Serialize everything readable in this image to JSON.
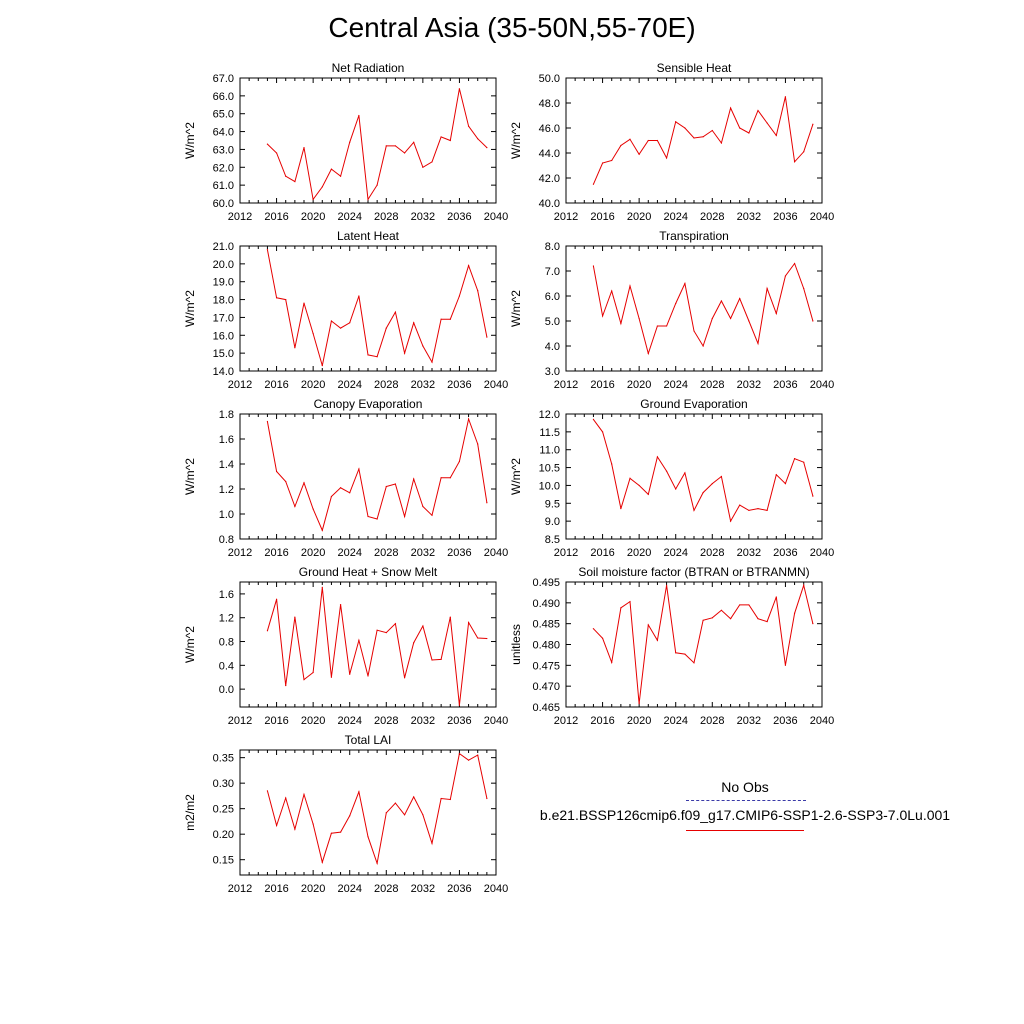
{
  "figure": {
    "title": "Central Asia (35-50N,55-70E)"
  },
  "legend": {
    "observation_label": "No Obs",
    "simulation_label": "b.e21.BSSP126cmip6.f09_g17.CMIP6-SSP1-2.6-SSP3-7.0Lu.001",
    "observation_color": "#3a3aa8",
    "simulation_color": "#e60000"
  },
  "chart_data": [
    {
      "type": "line",
      "title": "Net Radiation",
      "ylabel": "W/m^2",
      "xlim": [
        2012,
        2040
      ],
      "xticks": [
        2012,
        2016,
        2020,
        2024,
        2028,
        2032,
        2036,
        2040
      ],
      "ylim": [
        60.0,
        67.0
      ],
      "yticks": [
        60.0,
        61.0,
        62.0,
        63.0,
        64.0,
        65.0,
        66.0,
        67.0
      ],
      "ytick_labels": [
        "60.0",
        "61.0",
        "62.0",
        "63.0",
        "64.0",
        "65.0",
        "66.0",
        "67.0"
      ],
      "x": [
        2015,
        2016,
        2017,
        2018,
        2019,
        2020,
        2021,
        2022,
        2023,
        2024,
        2025,
        2026,
        2027,
        2028,
        2029,
        2030,
        2031,
        2032,
        2033,
        2034,
        2035,
        2036,
        2037,
        2038,
        2039
      ],
      "series": [
        {
          "values": [
            63.3,
            62.8,
            61.5,
            61.2,
            63.1,
            60.2,
            60.9,
            61.9,
            61.5,
            63.4,
            64.9,
            60.2,
            61.0,
            63.2,
            63.2,
            62.8,
            63.4,
            62.0,
            62.3,
            63.7,
            63.5,
            66.4,
            64.3,
            63.6,
            63.1
          ],
          "color": "#e60000"
        }
      ]
    },
    {
      "type": "line",
      "title": "Sensible Heat",
      "ylabel": "W/m^2",
      "xlim": [
        2012,
        2040
      ],
      "xticks": [
        2012,
        2016,
        2020,
        2024,
        2028,
        2032,
        2036,
        2040
      ],
      "ylim": [
        40.0,
        50.0
      ],
      "yticks": [
        40.0,
        42.0,
        44.0,
        46.0,
        48.0,
        50.0
      ],
      "ytick_labels": [
        "40.0",
        "42.0",
        "44.0",
        "46.0",
        "48.0",
        "50.0"
      ],
      "x": [
        2015,
        2016,
        2017,
        2018,
        2019,
        2020,
        2021,
        2022,
        2023,
        2024,
        2025,
        2026,
        2027,
        2028,
        2029,
        2030,
        2031,
        2032,
        2033,
        2034,
        2035,
        2036,
        2037,
        2038,
        2039
      ],
      "series": [
        {
          "values": [
            41.5,
            43.2,
            43.4,
            44.6,
            45.1,
            43.9,
            45.0,
            45.0,
            43.6,
            46.5,
            46.0,
            45.2,
            45.3,
            45.8,
            44.8,
            47.6,
            46.0,
            45.6,
            47.4,
            46.4,
            45.4,
            48.5,
            43.3,
            44.1,
            46.3
          ],
          "color": "#e60000"
        }
      ]
    },
    {
      "type": "line",
      "title": "Latent Heat",
      "ylabel": "W/m^2",
      "xlim": [
        2012,
        2040
      ],
      "xticks": [
        2012,
        2016,
        2020,
        2024,
        2028,
        2032,
        2036,
        2040
      ],
      "ylim": [
        14.0,
        21.0
      ],
      "yticks": [
        14.0,
        15.0,
        16.0,
        17.0,
        18.0,
        19.0,
        20.0,
        21.0
      ],
      "ytick_labels": [
        "14.0",
        "15.0",
        "16.0",
        "17.0",
        "18.0",
        "19.0",
        "20.0",
        "21.0"
      ],
      "x": [
        2015,
        2016,
        2017,
        2018,
        2019,
        2020,
        2021,
        2022,
        2023,
        2024,
        2025,
        2026,
        2027,
        2028,
        2029,
        2030,
        2031,
        2032,
        2033,
        2034,
        2035,
        2036,
        2037,
        2038,
        2039
      ],
      "series": [
        {
          "values": [
            20.8,
            18.1,
            18.0,
            15.3,
            17.8,
            16.1,
            14.3,
            16.8,
            16.4,
            16.7,
            18.2,
            14.9,
            14.8,
            16.4,
            17.3,
            15.0,
            16.7,
            15.4,
            14.5,
            16.9,
            16.9,
            18.2,
            19.9,
            18.5,
            15.9
          ],
          "color": "#e60000"
        }
      ]
    },
    {
      "type": "line",
      "title": "Transpiration",
      "ylabel": "W/m^2",
      "xlim": [
        2012,
        2040
      ],
      "xticks": [
        2012,
        2016,
        2020,
        2024,
        2028,
        2032,
        2036,
        2040
      ],
      "ylim": [
        3.0,
        8.0
      ],
      "yticks": [
        3.0,
        4.0,
        5.0,
        6.0,
        7.0,
        8.0
      ],
      "ytick_labels": [
        "3.0",
        "4.0",
        "5.0",
        "6.0",
        "7.0",
        "8.0"
      ],
      "x": [
        2015,
        2016,
        2017,
        2018,
        2019,
        2020,
        2021,
        2022,
        2023,
        2024,
        2025,
        2026,
        2027,
        2028,
        2029,
        2030,
        2031,
        2032,
        2033,
        2034,
        2035,
        2036,
        2037,
        2038,
        2039
      ],
      "series": [
        {
          "values": [
            7.2,
            5.2,
            6.2,
            4.9,
            6.4,
            5.1,
            3.7,
            4.8,
            4.8,
            5.7,
            6.5,
            4.6,
            4.0,
            5.1,
            5.8,
            5.1,
            5.9,
            5.0,
            4.1,
            6.3,
            5.3,
            6.8,
            7.3,
            6.3,
            5.0
          ],
          "color": "#e60000"
        }
      ]
    },
    {
      "type": "line",
      "title": "Canopy Evaporation",
      "ylabel": "W/m^2",
      "xlim": [
        2012,
        2040
      ],
      "xticks": [
        2012,
        2016,
        2020,
        2024,
        2028,
        2032,
        2036,
        2040
      ],
      "ylim": [
        0.8,
        1.8
      ],
      "yticks": [
        0.8,
        1.0,
        1.2,
        1.4,
        1.6,
        1.8
      ],
      "ytick_labels": [
        "0.8",
        "1.0",
        "1.2",
        "1.4",
        "1.6",
        "1.8"
      ],
      "x": [
        2015,
        2016,
        2017,
        2018,
        2019,
        2020,
        2021,
        2022,
        2023,
        2024,
        2025,
        2026,
        2027,
        2028,
        2029,
        2030,
        2031,
        2032,
        2033,
        2034,
        2035,
        2036,
        2037,
        2038,
        2039
      ],
      "series": [
        {
          "values": [
            1.74,
            1.34,
            1.26,
            1.06,
            1.25,
            1.04,
            0.87,
            1.14,
            1.21,
            1.17,
            1.36,
            0.98,
            0.96,
            1.22,
            1.24,
            0.98,
            1.28,
            1.06,
            0.99,
            1.29,
            1.29,
            1.42,
            1.76,
            1.56,
            1.09
          ],
          "color": "#e60000"
        }
      ]
    },
    {
      "type": "line",
      "title": "Ground Evaporation",
      "ylabel": "W/m^2",
      "xlim": [
        2012,
        2040
      ],
      "xticks": [
        2012,
        2016,
        2020,
        2024,
        2028,
        2032,
        2036,
        2040
      ],
      "ylim": [
        8.5,
        12.0
      ],
      "yticks": [
        8.5,
        9.0,
        9.5,
        10.0,
        10.5,
        11.0,
        11.5,
        12.0
      ],
      "ytick_labels": [
        "8.5",
        "9.0",
        "9.5",
        "10.0",
        "10.5",
        "11.0",
        "11.5",
        "12.0"
      ],
      "x": [
        2015,
        2016,
        2017,
        2018,
        2019,
        2020,
        2021,
        2022,
        2023,
        2024,
        2025,
        2026,
        2027,
        2028,
        2029,
        2030,
        2031,
        2032,
        2033,
        2034,
        2035,
        2036,
        2037,
        2038,
        2039
      ],
      "series": [
        {
          "values": [
            11.85,
            11.5,
            10.6,
            9.35,
            10.2,
            10.0,
            9.75,
            10.8,
            10.4,
            9.9,
            10.35,
            9.3,
            9.8,
            10.05,
            10.25,
            9.0,
            9.45,
            9.3,
            9.35,
            9.3,
            10.3,
            10.05,
            10.75,
            10.65,
            9.7
          ],
          "color": "#e60000"
        }
      ]
    },
    {
      "type": "line",
      "title": "Ground Heat + Snow Melt",
      "ylabel": "W/m^2",
      "xlim": [
        2012,
        2040
      ],
      "xticks": [
        2012,
        2016,
        2020,
        2024,
        2028,
        2032,
        2036,
        2040
      ],
      "ylim": [
        -0.3,
        1.8
      ],
      "yticks": [
        0.0,
        0.4,
        0.8,
        1.2,
        1.6
      ],
      "ytick_labels": [
        "0.0",
        "0.4",
        "0.8",
        "1.2",
        "1.6"
      ],
      "x": [
        2015,
        2016,
        2017,
        2018,
        2019,
        2020,
        2021,
        2022,
        2023,
        2024,
        2025,
        2026,
        2027,
        2028,
        2029,
        2030,
        2031,
        2032,
        2033,
        2034,
        2035,
        2036,
        2037,
        2038,
        2039
      ],
      "series": [
        {
          "values": [
            0.98,
            1.51,
            0.06,
            1.21,
            0.16,
            0.28,
            1.71,
            0.2,
            1.42,
            0.25,
            0.82,
            0.22,
            0.99,
            0.95,
            1.1,
            0.19,
            0.78,
            1.06,
            0.49,
            0.5,
            1.21,
            -0.27,
            1.12,
            0.86,
            0.85
          ],
          "color": "#e60000"
        }
      ]
    },
    {
      "type": "line",
      "title": "Soil moisture factor (BTRAN or BTRANMN)",
      "ylabel": "unitless",
      "xlim": [
        2012,
        2040
      ],
      "xticks": [
        2012,
        2016,
        2020,
        2024,
        2028,
        2032,
        2036,
        2040
      ],
      "ylim": [
        0.465,
        0.495
      ],
      "yticks": [
        0.465,
        0.47,
        0.475,
        0.48,
        0.485,
        0.49,
        0.495
      ],
      "ytick_labels": [
        "0.465",
        "0.470",
        "0.475",
        "0.480",
        "0.485",
        "0.490",
        "0.495"
      ],
      "x": [
        2015,
        2016,
        2017,
        2018,
        2019,
        2020,
        2021,
        2022,
        2023,
        2024,
        2025,
        2026,
        2027,
        2028,
        2029,
        2030,
        2031,
        2032,
        2033,
        2034,
        2035,
        2036,
        2037,
        2038,
        2039
      ],
      "series": [
        {
          "values": [
            0.4838,
            0.4815,
            0.4757,
            0.4888,
            0.4903,
            0.4658,
            0.4847,
            0.481,
            0.4942,
            0.478,
            0.4777,
            0.4756,
            0.4858,
            0.4864,
            0.4882,
            0.4862,
            0.4895,
            0.4895,
            0.4862,
            0.4855,
            0.4914,
            0.475,
            0.4875,
            0.4942,
            0.485
          ],
          "color": "#e60000"
        }
      ]
    },
    {
      "type": "line",
      "title": "Total LAI",
      "ylabel": "m2/m2",
      "xlim": [
        2012,
        2040
      ],
      "xticks": [
        2012,
        2016,
        2020,
        2024,
        2028,
        2032,
        2036,
        2040
      ],
      "ylim": [
        0.12,
        0.365
      ],
      "yticks": [
        0.15,
        0.2,
        0.25,
        0.3,
        0.35
      ],
      "ytick_labels": [
        "0.15",
        "0.20",
        "0.25",
        "0.30",
        "0.35"
      ],
      "x": [
        2015,
        2016,
        2017,
        2018,
        2019,
        2020,
        2021,
        2022,
        2023,
        2024,
        2025,
        2026,
        2027,
        2028,
        2029,
        2030,
        2031,
        2032,
        2033,
        2034,
        2035,
        2036,
        2037,
        2038,
        2039
      ],
      "series": [
        {
          "values": [
            0.285,
            0.217,
            0.271,
            0.21,
            0.278,
            0.22,
            0.145,
            0.202,
            0.204,
            0.236,
            0.283,
            0.195,
            0.143,
            0.242,
            0.261,
            0.238,
            0.273,
            0.238,
            0.182,
            0.27,
            0.268,
            0.358,
            0.345,
            0.355,
            0.27
          ],
          "color": "#e60000"
        }
      ]
    }
  ]
}
